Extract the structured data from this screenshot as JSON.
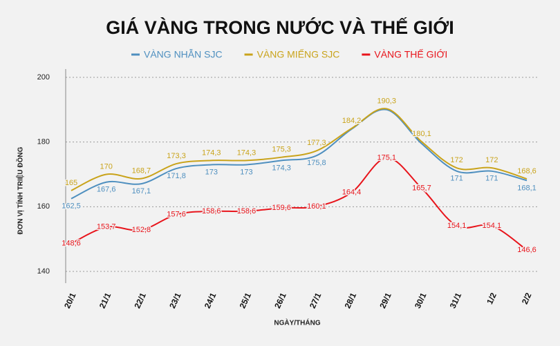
{
  "chart_data": {
    "type": "line",
    "title": "GIÁ VÀNG TRONG NƯỚC VÀ THẾ GIỚI",
    "x_label": "NGÀY/THÁNG",
    "y_label": "ĐƠN VỊ TÍNH TRIỆU ĐỒNG",
    "categories": [
      "20/1",
      "21/1",
      "22/1",
      "23/1",
      "24/1",
      "25/1",
      "26/1",
      "27/1",
      "28/1",
      "29/1",
      "30/1",
      "31/1",
      "1/2",
      "2/2"
    ],
    "series": [
      {
        "name": "VÀNG NHẪN SJC",
        "color": "#4e8fbf",
        "values": [
          162.5,
          167.6,
          167.1,
          171.8,
          173,
          173,
          174.3,
          175.8,
          184,
          190,
          179.5,
          171,
          171,
          168.1
        ],
        "value_labels": [
          "162,5",
          "167,6",
          "167,1",
          "171,8",
          "173",
          "173",
          "174,3",
          "175,8",
          null,
          null,
          null,
          "171",
          "171",
          "168,1"
        ]
      },
      {
        "name": "VÀNG MIẾNG SJC",
        "color": "#c9a31a",
        "values": [
          165,
          170,
          168.7,
          173.3,
          174.3,
          174.3,
          175.3,
          177.3,
          184.2,
          190.3,
          180.1,
          172,
          172,
          168.6
        ],
        "value_labels": [
          "165",
          "170",
          "168,7",
          "173,3",
          "174,3",
          "174,3",
          "175,3",
          "177,3",
          "184,2",
          "190,3",
          "180,1",
          "172",
          "172",
          "168,6"
        ]
      },
      {
        "name": "VÀNG THẾ GIỚI",
        "color": "#e8141b",
        "values": [
          148.6,
          153.7,
          152.8,
          157.6,
          158.6,
          158.6,
          159.6,
          160.1,
          164.4,
          175.1,
          165.7,
          154.1,
          154.1,
          146.6
        ],
        "value_labels": [
          "148,6",
          "153,7",
          "152,8",
          "157,6",
          "158,6",
          "158,6",
          "159,6",
          "160,1",
          "164,4",
          "175,1",
          "165,7",
          "154,1",
          "154,1",
          "146,6"
        ]
      }
    ],
    "ylim": [
      140,
      200
    ],
    "yticks": [
      140,
      160,
      180,
      200
    ],
    "grid": true
  }
}
